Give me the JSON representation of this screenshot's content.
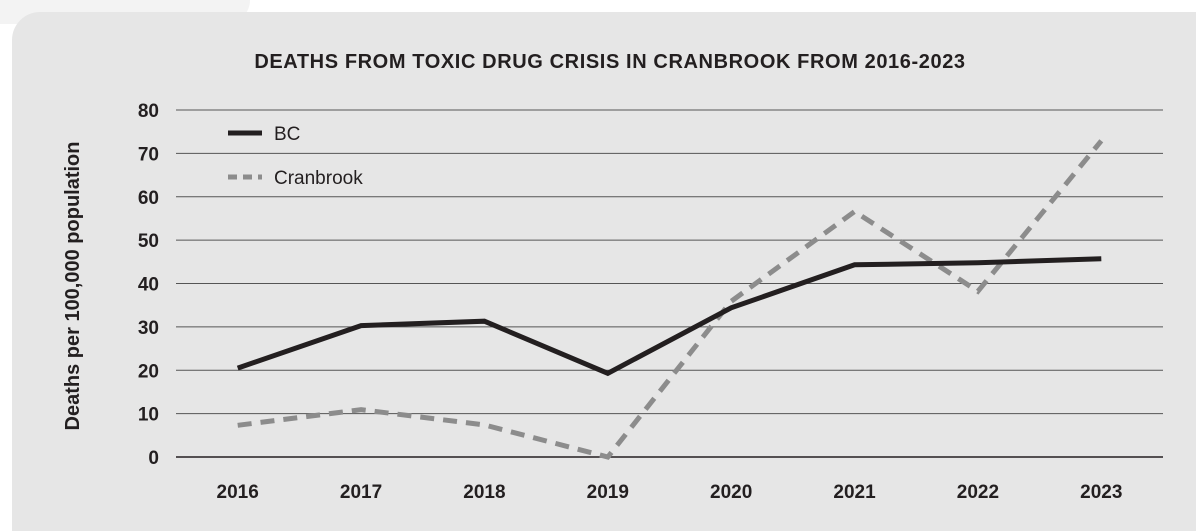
{
  "chart_data": {
    "type": "line",
    "title": "DEATHS FROM TOXIC DRUG CRISIS IN CRANBROOK FROM 2016-2023",
    "xlabel": "",
    "ylabel": "Deaths per 100,000 population",
    "categories": [
      "2016",
      "2017",
      "2018",
      "2019",
      "2020",
      "2021",
      "2022",
      "2023"
    ],
    "ylim": [
      0,
      80
    ],
    "yticks": [
      0,
      10,
      20,
      30,
      40,
      50,
      60,
      70,
      80
    ],
    "grid": true,
    "legend_position": "top-left",
    "series": [
      {
        "name": "BC",
        "values": [
          20.5,
          30.3,
          31.3,
          19.3,
          34.4,
          44.3,
          44.8,
          45.7
        ],
        "color": "#231f20",
        "style": "solid"
      },
      {
        "name": "Cranbrook",
        "values": [
          7.3,
          10.9,
          7.4,
          0,
          35.9,
          56.6,
          38.2,
          72.9
        ],
        "color": "#8c8c8c",
        "style": "dashed"
      }
    ]
  }
}
